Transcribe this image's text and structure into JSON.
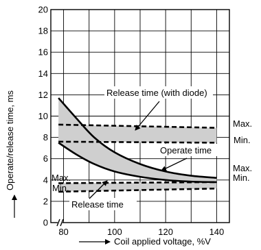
{
  "chart_data": {
    "type": "line",
    "title": "",
    "xlabel": "Coil applied voltage, %V",
    "ylabel": "Operate/release time, ms",
    "xlim": [
      75,
      145
    ],
    "ylim": [
      0,
      20
    ],
    "x_ticks": [
      80,
      100,
      120,
      140
    ],
    "y_ticks": [
      0,
      2,
      4,
      6,
      8,
      10,
      12,
      14,
      16,
      18,
      20
    ],
    "axis_break_x": true,
    "grid": true,
    "series": [
      {
        "name": "Operate time",
        "style": "solid",
        "bound": "max",
        "x": [
          78,
          85,
          92,
          100,
          110,
          120,
          130,
          140
        ],
        "y": [
          11.7,
          9.8,
          8.0,
          6.6,
          5.5,
          4.8,
          4.4,
          4.2
        ]
      },
      {
        "name": "Operate time",
        "style": "solid",
        "bound": "min",
        "x": [
          78,
          85,
          92,
          100,
          110,
          120,
          130,
          140
        ],
        "y": [
          7.5,
          6.4,
          5.5,
          4.8,
          4.3,
          4.0,
          3.85,
          3.8
        ]
      },
      {
        "name": "Release time (with diode)",
        "style": "dashed",
        "bound": "max",
        "x": [
          78,
          140
        ],
        "y": [
          9.2,
          8.9
        ]
      },
      {
        "name": "Release time (with diode)",
        "style": "dashed",
        "bound": "min",
        "x": [
          78,
          140
        ],
        "y": [
          7.6,
          7.5
        ]
      },
      {
        "name": "Release time",
        "style": "dashed",
        "bound": "max",
        "x": [
          78,
          140
        ],
        "y": [
          3.7,
          3.8
        ]
      },
      {
        "name": "Release time",
        "style": "dashed",
        "bound": "min",
        "x": [
          78,
          140
        ],
        "y": [
          2.9,
          3.2
        ]
      }
    ],
    "annotations": {
      "release_diode": "Release time (with diode)",
      "operate": "Operate time",
      "release": "Release time",
      "max_label": "Max.",
      "min_label": "Min."
    }
  }
}
